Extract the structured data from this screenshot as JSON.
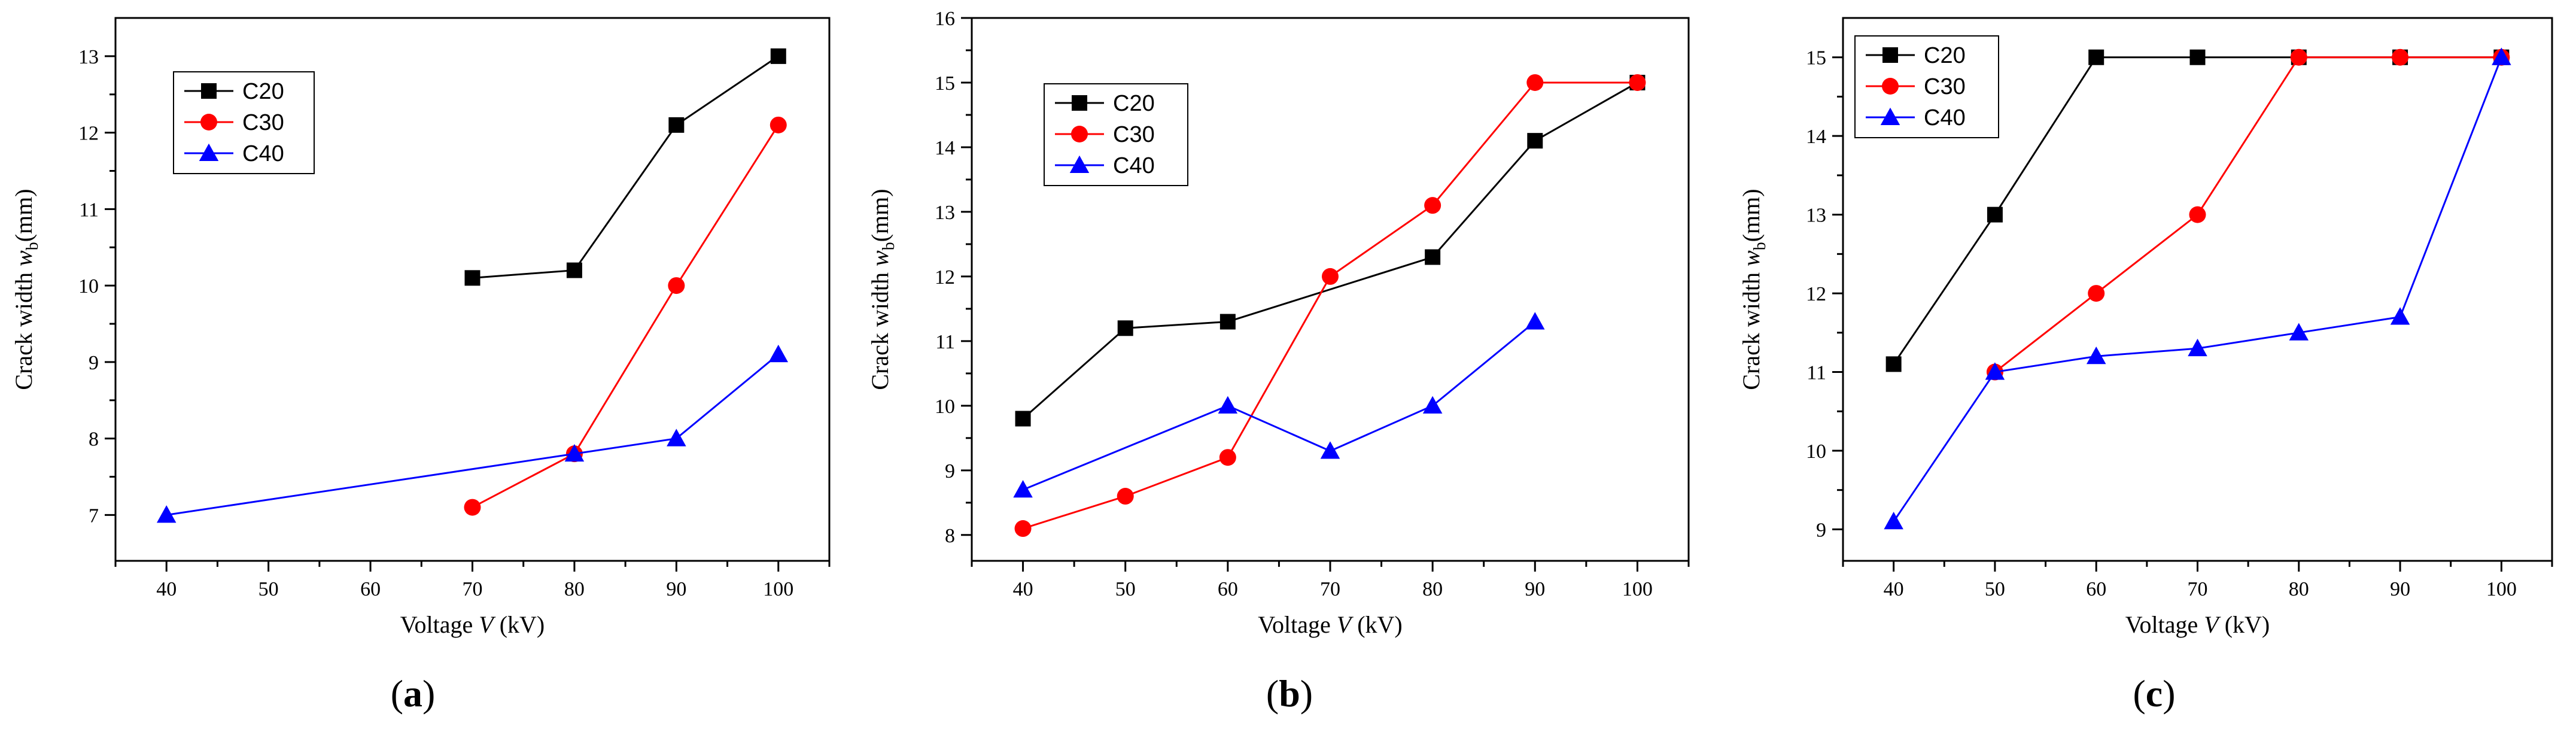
{
  "chart_data": [
    {
      "type": "line",
      "panel_label": "(a)",
      "xlabel_prefix": "Voltage ",
      "xlabel_var": "V",
      "xlabel_suffix": " (kV)",
      "ylabel_prefix": "Crack width ",
      "ylabel_var": "w",
      "ylabel_sub": "b",
      "ylabel_suffix": "(mm)",
      "xlim": [
        35,
        105
      ],
      "ylim": [
        6.4,
        13.5
      ],
      "xticks": [
        40,
        50,
        60,
        70,
        80,
        90,
        100
      ],
      "yticks": [
        7,
        8,
        9,
        10,
        11,
        12,
        13
      ],
      "legend_position": "upper-left",
      "series": [
        {
          "name": "C20",
          "color": "#000000",
          "marker": "square",
          "x": [
            70,
            80,
            90,
            100
          ],
          "y": [
            10.1,
            10.2,
            12.1,
            13.0
          ]
        },
        {
          "name": "C30",
          "color": "#ff0000",
          "marker": "circle",
          "x": [
            70,
            80,
            90,
            100
          ],
          "y": [
            7.1,
            7.8,
            10.0,
            12.1
          ]
        },
        {
          "name": "C40",
          "color": "#0000ff",
          "marker": "triangle",
          "x": [
            40,
            80,
            90,
            100
          ],
          "y": [
            7.0,
            7.8,
            8.0,
            9.1
          ]
        }
      ]
    },
    {
      "type": "line",
      "panel_label": "(b)",
      "xlabel_prefix": "Voltage ",
      "xlabel_var": "V",
      "xlabel_suffix": " (kV)",
      "ylabel_prefix": "Crack width ",
      "ylabel_var": "w",
      "ylabel_sub": "b",
      "ylabel_suffix": "(mm)",
      "xlim": [
        35,
        105
      ],
      "ylim": [
        7.6,
        16
      ],
      "xticks": [
        40,
        50,
        60,
        70,
        80,
        90,
        100
      ],
      "yticks": [
        8,
        9,
        10,
        11,
        12,
        13,
        14,
        15,
        16
      ],
      "legend_position": "upper-left",
      "series": [
        {
          "name": "C20",
          "color": "#000000",
          "marker": "square",
          "x": [
            40,
            50,
            60,
            80,
            90,
            100
          ],
          "y": [
            9.8,
            11.2,
            11.3,
            12.3,
            14.1,
            15.0
          ]
        },
        {
          "name": "C30",
          "color": "#ff0000",
          "marker": "circle",
          "x": [
            40,
            50,
            60,
            70,
            80,
            90,
            100
          ],
          "y": [
            8.1,
            8.6,
            9.2,
            12.0,
            13.1,
            15.0,
            15.0
          ]
        },
        {
          "name": "C40",
          "color": "#0000ff",
          "marker": "triangle",
          "x": [
            40,
            60,
            70,
            80,
            90
          ],
          "y": [
            8.7,
            10.0,
            9.3,
            10.0,
            11.3
          ]
        }
      ]
    },
    {
      "type": "line",
      "panel_label": "(c)",
      "xlabel_prefix": "Voltage ",
      "xlabel_var": "V",
      "xlabel_suffix": " (kV)",
      "ylabel_prefix": "Crack width ",
      "ylabel_var": "w",
      "ylabel_sub": "b",
      "ylabel_suffix": "(mm)",
      "xlim": [
        35,
        105
      ],
      "ylim": [
        8.6,
        15.5
      ],
      "xticks": [
        40,
        50,
        60,
        70,
        80,
        90,
        100
      ],
      "yticks": [
        9,
        10,
        11,
        12,
        13,
        14,
        15
      ],
      "legend_position": "upper-left",
      "series": [
        {
          "name": "C20",
          "color": "#000000",
          "marker": "square",
          "x": [
            40,
            50,
            60,
            70,
            80,
            90,
            100
          ],
          "y": [
            11.1,
            13.0,
            15.0,
            15.0,
            15.0,
            15.0,
            15.0
          ]
        },
        {
          "name": "C30",
          "color": "#ff0000",
          "marker": "circle",
          "x": [
            50,
            60,
            70,
            80,
            90,
            100
          ],
          "y": [
            11.0,
            12.0,
            13.0,
            15.0,
            15.0,
            15.0
          ]
        },
        {
          "name": "C40",
          "color": "#0000ff",
          "marker": "triangle",
          "x": [
            40,
            50,
            60,
            70,
            80,
            90,
            100
          ],
          "y": [
            9.1,
            11.0,
            11.2,
            11.3,
            11.5,
            11.7,
            15.0
          ]
        }
      ]
    }
  ]
}
